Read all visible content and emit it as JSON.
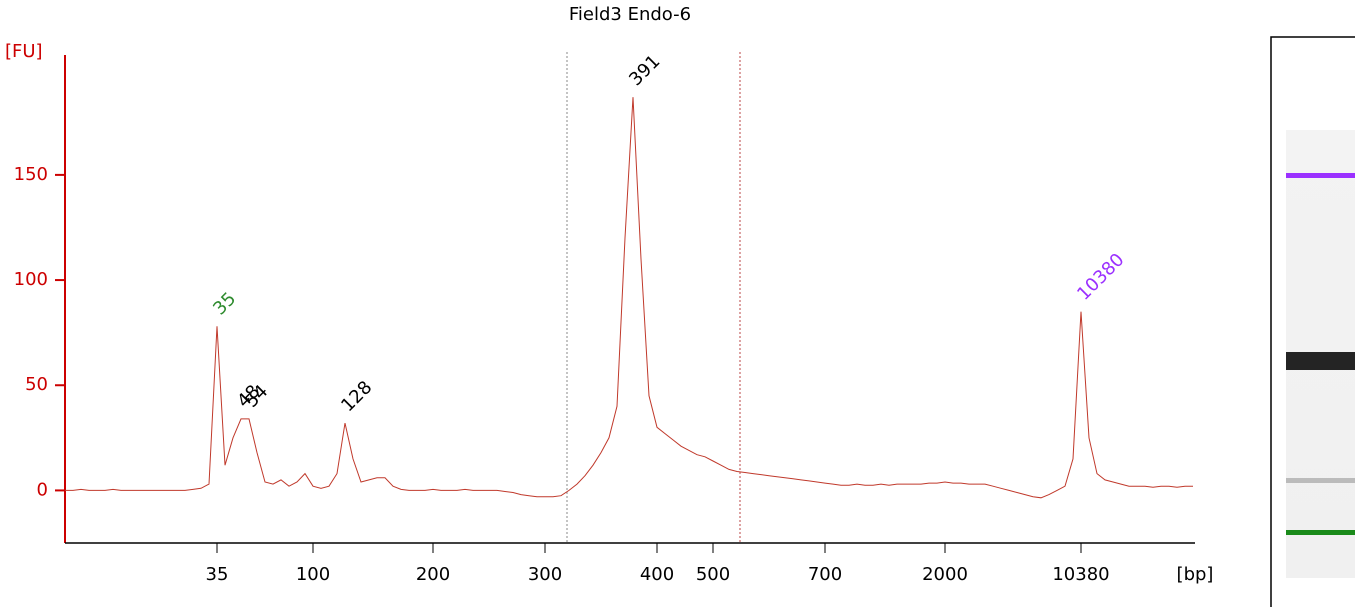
{
  "chart_data": {
    "type": "line",
    "title": "Field3 Endo-6",
    "ylabel": "[FU]",
    "xlabel": "[bp]",
    "categories": [
      null,
      null,
      null,
      null,
      null,
      null,
      null,
      null,
      null,
      null,
      null,
      null,
      null,
      null,
      null,
      null,
      null,
      null,
      null,
      "35",
      null,
      null,
      null,
      null,
      null,
      null,
      null,
      null,
      null,
      null,
      null,
      "100",
      null,
      null,
      null,
      null,
      null,
      null,
      null,
      null,
      null,
      null,
      null,
      null,
      null,
      null,
      "200",
      null,
      null,
      null,
      null,
      null,
      null,
      null,
      null,
      null,
      null,
      null,
      null,
      null,
      "300",
      null,
      null,
      null,
      null,
      null,
      null,
      null,
      null,
      null,
      null,
      null,
      null,
      null,
      "400",
      null,
      null,
      null,
      null,
      null,
      null,
      "500",
      null,
      null,
      null,
      null,
      null,
      null,
      null,
      null,
      null,
      null,
      null,
      null,
      null,
      "700",
      null,
      null,
      null,
      null,
      null,
      null,
      null,
      null,
      null,
      null,
      null,
      null,
      null,
      null,
      "2000",
      null,
      null,
      null,
      null,
      null,
      null,
      null,
      null,
      null,
      null,
      null,
      null,
      null,
      null,
      null,
      null,
      "10380",
      null,
      null,
      null,
      null,
      null,
      null,
      null,
      null,
      null,
      null,
      null,
      null,
      null,
      null
    ],
    "series": [
      {
        "name": "Field3 Endo-6",
        "color": "#c0392b",
        "values": [
          0,
          0,
          0.5,
          0,
          0,
          0,
          0.5,
          0,
          0,
          0,
          0,
          0,
          0,
          0,
          0,
          0,
          0.5,
          1,
          3,
          78,
          12,
          25,
          34,
          34,
          18,
          4,
          3,
          5,
          2,
          4,
          8,
          2,
          1,
          2,
          8,
          32,
          15,
          4,
          5,
          6,
          6,
          2,
          0.5,
          0,
          0,
          0,
          0.5,
          0,
          0,
          0,
          0.5,
          0,
          0,
          0,
          0,
          -0.5,
          -1,
          -2,
          -2.5,
          -3,
          -3,
          -3,
          -2.5,
          0,
          3,
          7,
          12,
          18,
          25,
          40,
          120,
          187,
          110,
          45,
          30,
          27,
          24,
          21,
          19,
          17,
          16,
          14,
          12,
          10,
          9,
          8.5,
          8,
          7.5,
          7,
          6.5,
          6,
          5.5,
          5,
          4.5,
          4,
          3.5,
          3,
          2.5,
          2.5,
          3,
          2.5,
          2.5,
          3,
          2.5,
          3,
          3,
          3,
          3,
          3.5,
          3.5,
          4,
          3.5,
          3.5,
          3,
          3,
          3,
          2,
          1,
          0,
          -1,
          -2,
          -3,
          -3.5,
          -2,
          0,
          2,
          15,
          85,
          25,
          8,
          5,
          4,
          3,
          2,
          2,
          2,
          1.5,
          2,
          2,
          1.5,
          2,
          2
        ]
      }
    ],
    "peaks": [
      {
        "label": "35",
        "at": 19,
        "color": "#2e8b2e"
      },
      {
        "label": "48",
        "at": 22,
        "color": "#000000"
      },
      {
        "label": "54",
        "at": 23,
        "color": "#000000"
      },
      {
        "label": "128",
        "at": 35,
        "color": "#000000"
      },
      {
        "label": "391",
        "at": 71,
        "color": "#000000"
      },
      {
        "label": "10380",
        "at": 127,
        "color": "#9b30ff"
      }
    ],
    "ylim": [
      -25,
      207
    ],
    "yticks": [
      0,
      50,
      100,
      150
    ]
  }
}
